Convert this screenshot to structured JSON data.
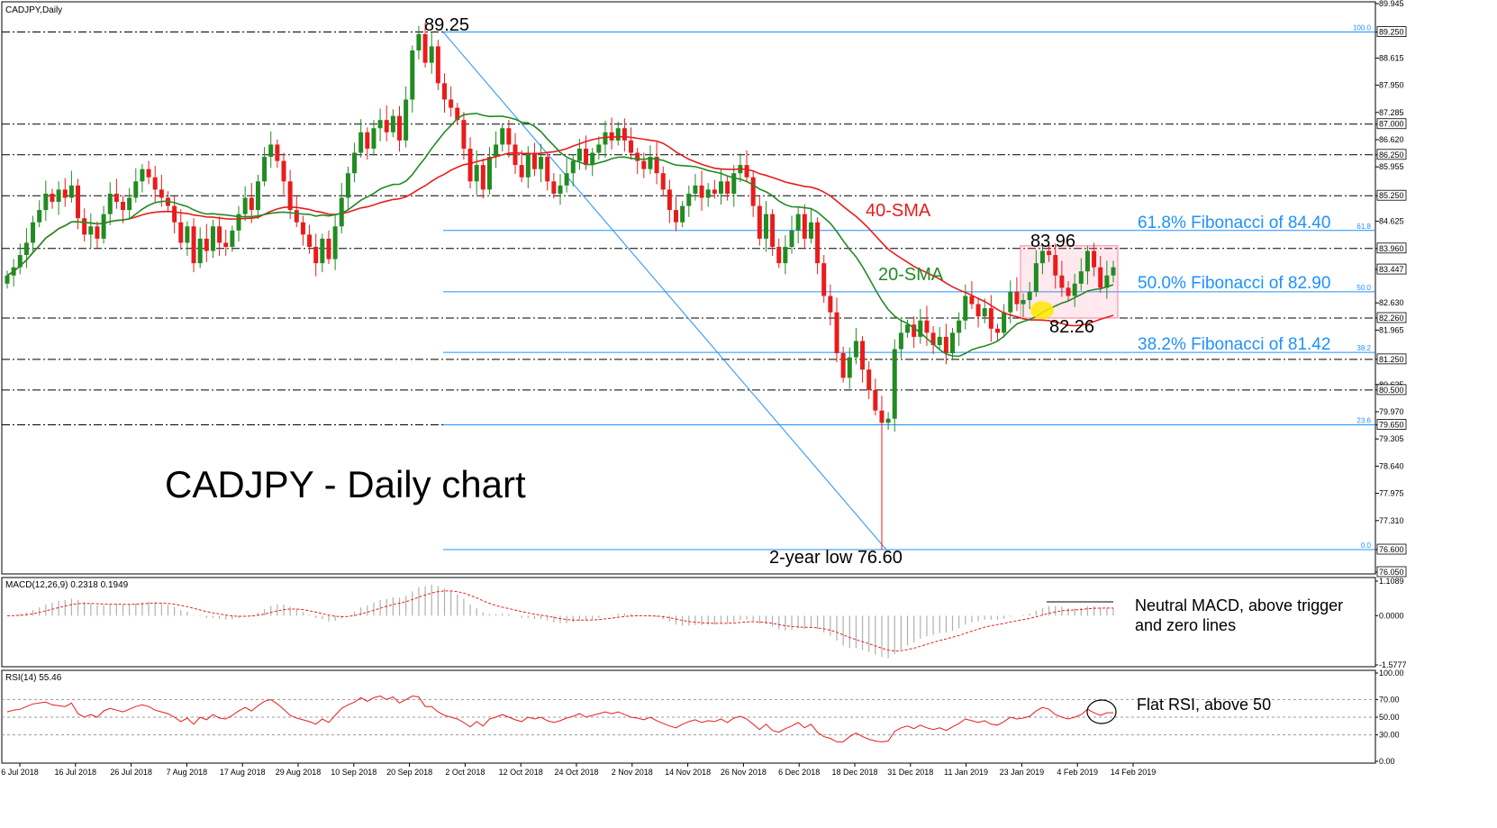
{
  "chart_data": [
    {
      "type": "candlestick",
      "header": "CADJPY,Daily",
      "title": "CADJPY - Daily chart",
      "ylim": [
        76.05,
        89.945
      ],
      "y_ticks": [
        89.945,
        89.25,
        88.615,
        87.95,
        87.285,
        87.0,
        86.62,
        86.25,
        85.955,
        85.25,
        84.625,
        83.96,
        83.447,
        82.63,
        82.26,
        81.965,
        81.25,
        80.635,
        80.5,
        79.97,
        79.65,
        79.305,
        78.64,
        77.975,
        77.31,
        76.6,
        76.05
      ],
      "y_tick_highlights": [
        "89.250",
        "87.000",
        "86.250",
        "85.250",
        "83.960",
        "83.447",
        "82.260",
        "81.250",
        "80.500",
        "79.650",
        "76.600",
        "76.050"
      ],
      "dates": [
        "6 Jul 2018",
        "16 Jul 2018",
        "26 Jul 2018",
        "7 Aug 2018",
        "17 Aug 2018",
        "29 Aug 2018",
        "10 Sep 2018",
        "20 Sep 2018",
        "2 Oct 2018",
        "12 Oct 2018",
        "24 Oct 2018",
        "2 Nov 2018",
        "14 Nov 2018",
        "26 Nov 2018",
        "6 Dec 2018",
        "18 Dec 2018",
        "31 Dec 2018",
        "11 Jan 2019",
        "23 Jan 2019",
        "4 Feb 2019",
        "14 Feb 2019"
      ],
      "series": [
        {
          "name": "20-SMA",
          "color": "#228b22"
        },
        {
          "name": "40-SMA",
          "color": "#e81c1c"
        }
      ],
      "horizontal_levels": [
        89.25,
        87.0,
        86.25,
        85.25,
        83.96,
        82.26,
        81.25,
        80.5,
        79.65,
        76.6
      ],
      "fibonacci": {
        "high": 89.25,
        "low": 76.6,
        "levels": [
          {
            "tag": "100.0",
            "value": 89.25
          },
          {
            "tag": "61.8",
            "value": 84.4,
            "label": "61.8% Fibonacci of 84.40"
          },
          {
            "tag": "50.0",
            "value": 82.9,
            "label": "50.0% Fibonacci of 82.90"
          },
          {
            "tag": "38.2",
            "value": 81.42,
            "label": "38.2% Fibonacci of 81.42"
          },
          {
            "tag": "23.6",
            "value": 79.65
          },
          {
            "tag": "0.0",
            "value": 76.6
          }
        ]
      },
      "annotations": {
        "high": "89.25",
        "low": "2-year low 76.60",
        "range_high": "83.96",
        "range_low": "82.26",
        "sma20": "20-SMA",
        "sma40": "40-SMA"
      },
      "close": [
        83.3,
        83.5,
        83.8,
        84.1,
        84.6,
        84.9,
        85.3,
        85.1,
        85.4,
        85.2,
        85.5,
        84.7,
        84.3,
        84.5,
        84.2,
        84.8,
        85.3,
        85.1,
        84.9,
        85.2,
        85.6,
        85.9,
        85.7,
        85.4,
        85.2,
        85.0,
        84.6,
        84.1,
        84.5,
        83.6,
        84.2,
        83.9,
        84.5,
        84.1,
        84.0,
        84.4,
        84.8,
        85.2,
        84.9,
        85.6,
        86.2,
        86.5,
        86.1,
        85.6,
        84.9,
        84.6,
        84.3,
        84.0,
        83.6,
        84.2,
        83.7,
        84.5,
        85.2,
        85.8,
        86.3,
        86.8,
        86.4,
        86.9,
        87.1,
        86.8,
        87.2,
        86.6,
        87.6,
        88.8,
        89.2,
        88.5,
        88.9,
        88.0,
        87.6,
        87.4,
        87.1,
        86.4,
        85.6,
        86.0,
        85.4,
        86.2,
        86.5,
        86.9,
        86.5,
        86.0,
        85.7,
        86.3,
        85.9,
        86.2,
        85.6,
        85.3,
        85.5,
        85.8,
        86.1,
        86.4,
        86.0,
        86.3,
        86.5,
        86.8,
        86.6,
        86.9,
        86.6,
        86.3,
        86.1,
        85.9,
        86.2,
        85.8,
        85.4,
        84.9,
        84.6,
        85.0,
        85.3,
        85.5,
        85.2,
        85.4,
        85.3,
        85.6,
        85.3,
        85.8,
        86.0,
        85.7,
        85.0,
        84.2,
        84.8,
        84.0,
        83.6,
        84.0,
        84.4,
        84.8,
        84.2,
        84.6,
        83.6,
        82.8,
        82.4,
        81.4,
        80.8,
        81.3,
        81.7,
        81.0,
        80.5,
        80.0,
        79.7,
        79.8,
        81.5,
        81.9,
        82.1,
        81.8,
        82.2,
        81.9,
        81.6,
        81.8,
        81.4,
        81.9,
        82.2,
        82.8,
        82.6,
        82.3,
        82.5,
        82.0,
        81.9,
        82.4,
        82.9,
        82.6,
        82.7,
        82.9,
        83.6,
        83.9,
        83.8,
        83.3,
        83.0,
        82.8,
        83.1,
        83.4,
        83.9,
        83.5,
        83.0,
        83.3,
        83.5
      ]
    },
    {
      "type": "histogram",
      "header": "MACD(12,26,9) 0.2318 0.1949",
      "ylim": [
        -1.5777,
        1.1089
      ],
      "y_ticks": [
        1.1089,
        0.0,
        -1.5777
      ],
      "note": [
        "Neutral MACD, above trigger",
        "and zero lines"
      ]
    },
    {
      "type": "line",
      "header": "RSI(14) 55.46",
      "ylim": [
        0,
        100
      ],
      "y_ticks": [
        100.0,
        70.0,
        50.0,
        30.0,
        0.0
      ],
      "note": "Flat RSI, above 50",
      "values": [
        56,
        58,
        59,
        62,
        65,
        66,
        67,
        64,
        63,
        62,
        66,
        54,
        50,
        53,
        50,
        57,
        60,
        58,
        56,
        59,
        62,
        64,
        62,
        58,
        56,
        54,
        50,
        45,
        49,
        42,
        50,
        47,
        53,
        49,
        48,
        52,
        57,
        61,
        57,
        63,
        68,
        70,
        65,
        59,
        52,
        49,
        47,
        45,
        42,
        48,
        44,
        52,
        60,
        64,
        67,
        72,
        68,
        72,
        74,
        70,
        73,
        66,
        70,
        74,
        73,
        62,
        62,
        56,
        52,
        50,
        48,
        44,
        39,
        45,
        40,
        48,
        50,
        53,
        50,
        47,
        45,
        50,
        48,
        50,
        46,
        44,
        46,
        49,
        51,
        54,
        50,
        52,
        54,
        56,
        54,
        56,
        53,
        50,
        49,
        47,
        50,
        46,
        43,
        40,
        38,
        42,
        45,
        47,
        44,
        46,
        45,
        48,
        44,
        49,
        51,
        48,
        42,
        36,
        42,
        35,
        33,
        37,
        40,
        44,
        38,
        42,
        33,
        28,
        26,
        22,
        22,
        28,
        32,
        28,
        25,
        23,
        22,
        23,
        34,
        38,
        40,
        37,
        41,
        38,
        36,
        38,
        35,
        39,
        43,
        48,
        46,
        44,
        46,
        42,
        41,
        45,
        50,
        48,
        49,
        51,
        57,
        61,
        59,
        53,
        50,
        48,
        50,
        53,
        59,
        55,
        52,
        55,
        55
      ]
    }
  ]
}
